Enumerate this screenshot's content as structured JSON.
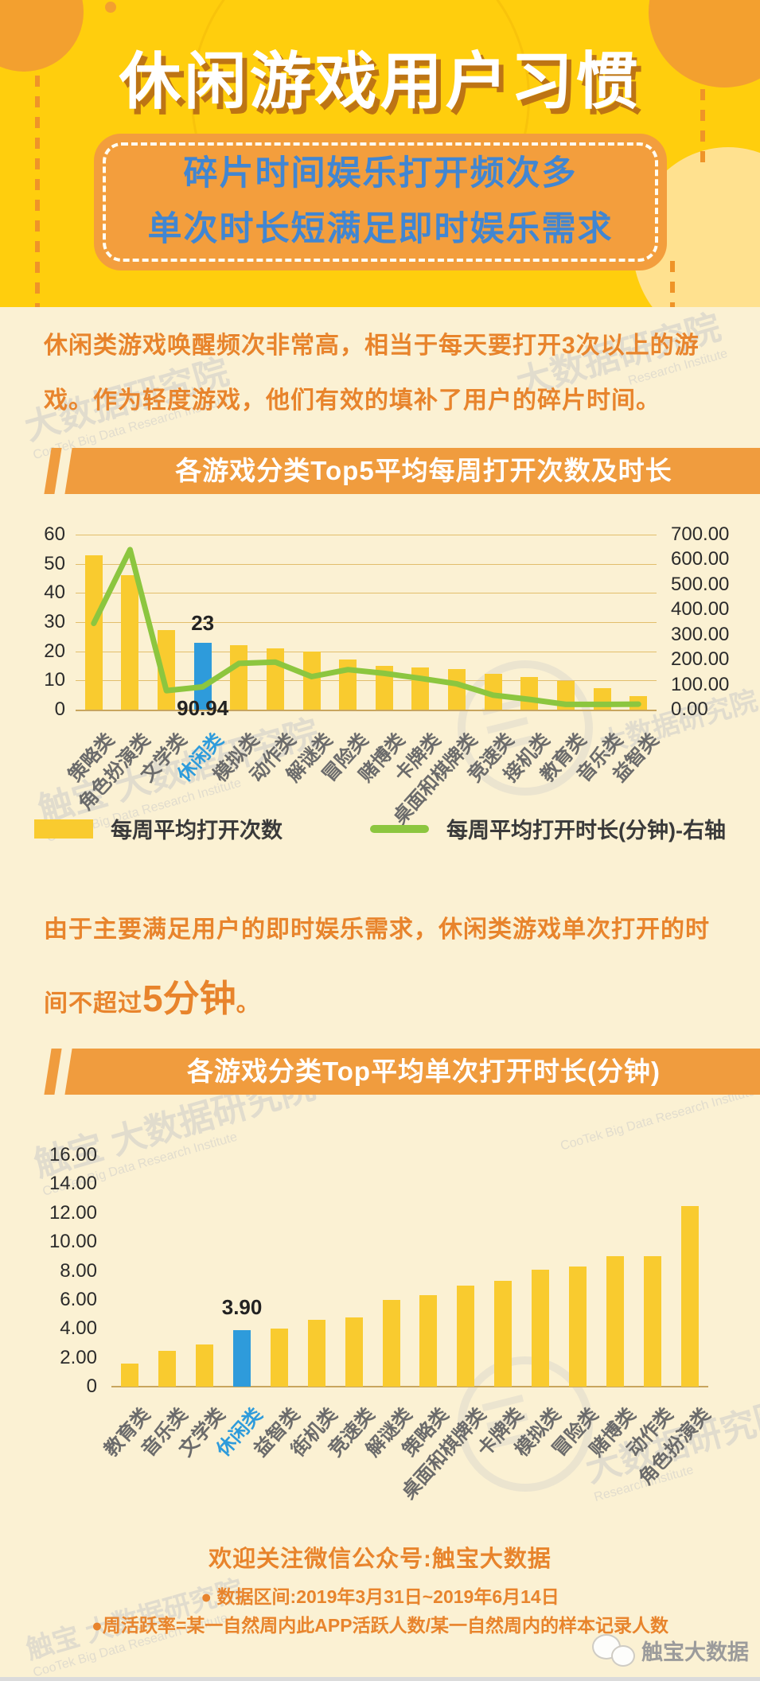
{
  "header": {
    "title": "休闲游戏用户习惯",
    "subtitle_line1": "碎片时间娱乐打开频次多",
    "subtitle_line2": "单次时长短满足即时娱乐需求"
  },
  "sections": {
    "para1": "休闲类游戏唤醒频次非常高，相当于每天要打开3次以上的游戏。作为轻度游戏，他们有效的填补了用户的碎片时间。",
    "para2_prefix": "由于主要满足用户的即时娱乐需求，休闲类游戏单次打开的时间不超过",
    "para2_emphasis": "5分钟",
    "para2_suffix": "。"
  },
  "chart_data": [
    {
      "type": "bar+line",
      "title": "各游戏分类Top5平均每周打开次数及时长",
      "categories": [
        "策略类",
        "角色扮演类",
        "文学类",
        "休闲类",
        "模拟类",
        "动作类",
        "解谜类",
        "冒险类",
        "赌博类",
        "卡牌类",
        "桌面和棋牌类",
        "竞速类",
        "接机类",
        "教育类",
        "音乐类",
        "益智类"
      ],
      "series": [
        {
          "name": "每周平均打开次数",
          "axis": "left",
          "values": [
            53,
            46,
            27.4,
            23,
            22.2,
            21.1,
            19.8,
            17.3,
            15,
            14.4,
            13.8,
            12.2,
            11.1,
            9.9,
            7.3,
            4.7
          ]
        },
        {
          "name": "每周平均打开时长(分钟)-右轴",
          "axis": "right",
          "values": [
            345,
            640,
            76,
            90.94,
            185,
            190,
            132,
            160,
            145,
            125,
            103,
            58,
            41,
            21,
            21,
            22
          ]
        }
      ],
      "left_axis_ticks": [
        "60",
        "50",
        "40",
        "30",
        "20",
        "10",
        "0"
      ],
      "right_axis_ticks": [
        "700.00",
        "600.00",
        "500.00",
        "400.00",
        "300.00",
        "200.00",
        "100.00",
        "0.00"
      ],
      "left_axis_range": [
        0,
        60
      ],
      "right_axis_range": [
        0,
        700
      ],
      "grid": true,
      "highlight_index": 3,
      "highlight_bar_label": "23",
      "highlight_line_label": "90.94"
    },
    {
      "type": "bar",
      "title": "各游戏分类Top平均单次打开时长(分钟)",
      "categories": [
        "教育类",
        "音乐类",
        "文学类",
        "休闲类",
        "益智类",
        "街机类",
        "竞速类",
        "解谜类",
        "策略类",
        "桌面和棋牌类",
        "卡牌类",
        "模拟类",
        "冒险类",
        "赌博类",
        "动作类",
        "角色扮演类"
      ],
      "values": [
        1.6,
        2.5,
        2.9,
        3.9,
        4.0,
        4.6,
        4.8,
        6.0,
        6.3,
        7.0,
        7.3,
        8.1,
        8.3,
        9.0,
        9.0,
        12.5
      ],
      "axis_ticks": [
        "16.00",
        "14.00",
        "12.00",
        "10.00",
        "8.00",
        "6.00",
        "4.00",
        "2.00",
        "0"
      ],
      "axis_range": [
        0,
        16
      ],
      "grid": false,
      "highlight_index": 3,
      "highlight_bar_label": "3.90"
    }
  ],
  "footer": {
    "wechat_line": "欢迎关注微信公众号:触宝大数据",
    "note1": "● 数据区间:2019年3月31日~2019年6月14日",
    "note2": "●周活跃率=某一自然周内此APP活跃人数/某一自然周内的样本记录人数",
    "brand_text": "触宝大数据"
  },
  "watermark": {
    "cn_full": "触宝 大数据研究院",
    "cn_short": "大数据研究院",
    "en": "CooTek Big Data Research Institute",
    "en_short": "Research Institute"
  },
  "colors": {
    "header_yellow": "#FFCE0D",
    "deco_orange": "#F3A02F",
    "box_orange": "#F39E3D",
    "subtitle_blue": "#4186D2",
    "banner_orange": "#F09C3E",
    "body_cream": "#FBF1D3",
    "text_orange": "#E8842C",
    "bar_yellow": "#F9CB2F",
    "highlight_blue": "#2E9BDB",
    "line_green": "#8CC63F",
    "grid_tan": "#E2BE6C"
  }
}
